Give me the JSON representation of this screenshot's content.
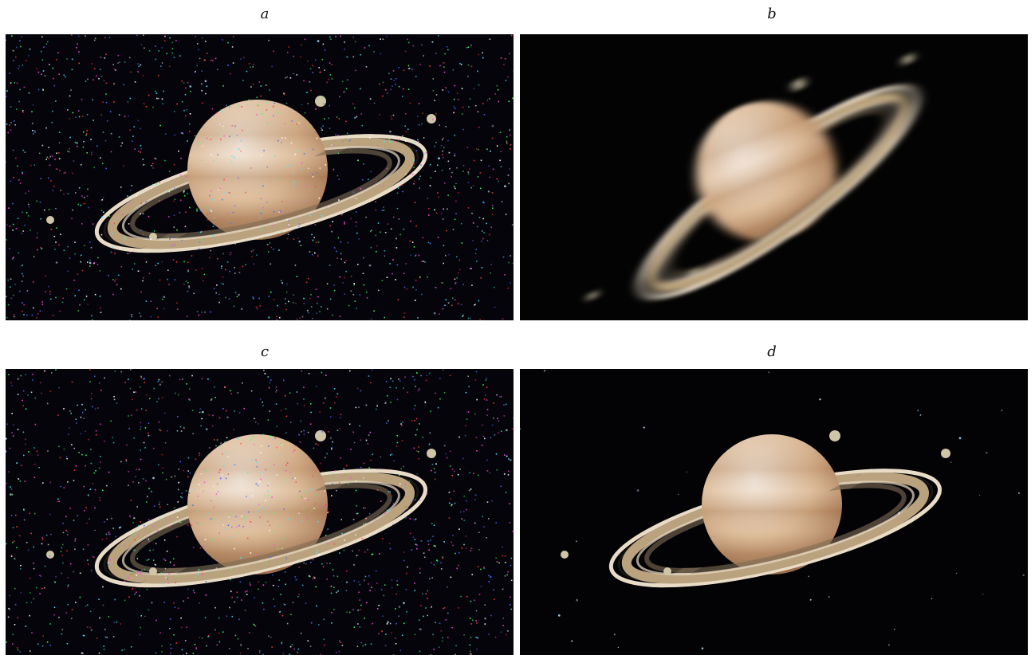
{
  "panels": [
    {
      "id": "a",
      "label": "a",
      "variant": "impulse-noise",
      "background": "#05040a"
    },
    {
      "id": "b",
      "label": "b",
      "variant": "motion-blur",
      "background": "#030303"
    },
    {
      "id": "c",
      "label": "c",
      "variant": "impulse-noise",
      "background": "#05040a"
    },
    {
      "id": "d",
      "label": "d",
      "variant": "restored",
      "background": "#030306"
    }
  ],
  "colors": {
    "planet_light": "#f2e6da",
    "planet_mid": "#d9b48e",
    "planet_dark": "#a06e48",
    "ring_light": "#e9dcc7",
    "ring_mid": "#b9a27d",
    "ring_dark": "#1a1612",
    "moon": "#cfc5a8",
    "noise": [
      "#ff3b3b",
      "#3bff6a",
      "#4a6bff",
      "#ff4adf",
      "#46e6ff",
      "#ffffff"
    ]
  }
}
